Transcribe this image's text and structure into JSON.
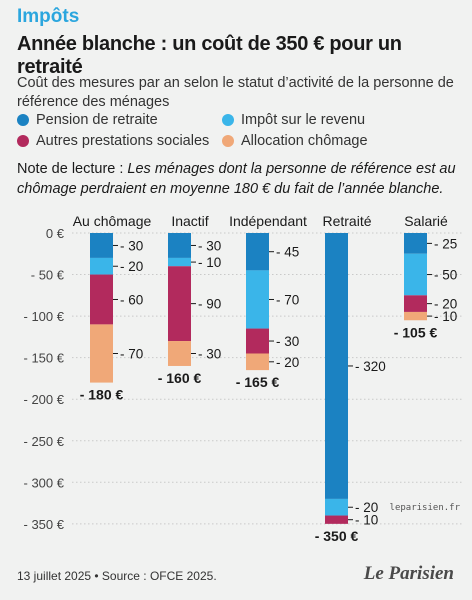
{
  "kicker": "Impôts",
  "title": "Année blanche : un coût de 350 € pour un retraité",
  "subtitle": "Coût des mesures par an selon le statut d’activité de la personne de référence des ménages",
  "legend": [
    {
      "label": "Pension de retraite",
      "color": "#1b82c2"
    },
    {
      "label": "Impôt sur le revenu",
      "color": "#3ab5e9"
    },
    {
      "label": "Autres prestations sociales",
      "color": "#b22a5d"
    },
    {
      "label": "Allocation chômage",
      "color": "#f0a878"
    }
  ],
  "note": {
    "prefix": "Note de lecture : ",
    "text": "Les ménages dont la personne de référence est au chômage perdraient en moyenne 180 € du fait de l’année blanche."
  },
  "footer": "13 juillet 2025 • Source : OFCE 2025.",
  "brand": "Le Parisien",
  "watermark": "leparisien.fr",
  "chart_data": {
    "type": "bar",
    "stacked": true,
    "categories": [
      "Au chômage",
      "Inactif",
      "Indépendant",
      "Retraité",
      "Salarié"
    ],
    "series": [
      {
        "name": "Pension de retraite",
        "color": "#1b82c2",
        "values": [
          -30,
          -30,
          -45,
          -320,
          -25
        ]
      },
      {
        "name": "Impôt sur le revenu",
        "color": "#3ab5e9",
        "values": [
          -20,
          -10,
          -70,
          -20,
          -50
        ]
      },
      {
        "name": "Autres prestations sociales",
        "color": "#b22a5d",
        "values": [
          -60,
          -90,
          -30,
          -10,
          -20
        ]
      },
      {
        "name": "Allocation chômage",
        "color": "#f0a878",
        "values": [
          -70,
          -30,
          -20,
          0,
          -10
        ]
      }
    ],
    "segment_labels": [
      [
        "- 30",
        "- 20",
        "- 60",
        "- 70"
      ],
      [
        "- 30",
        "- 10",
        "- 90",
        "- 30"
      ],
      [
        "- 45",
        "- 70",
        "- 30",
        "- 20"
      ],
      [
        "- 320",
        "- 20",
        "- 10",
        ""
      ],
      [
        "- 25",
        "- 50",
        "- 20",
        "- 10"
      ]
    ],
    "totals": [
      -180,
      -160,
      -165,
      -350,
      -105
    ],
    "total_labels": [
      "- 180 €",
      "- 160 €",
      "- 165 €",
      "- 350 €",
      "- 105 €"
    ],
    "y_ticks": [
      0,
      -50,
      -100,
      -150,
      -200,
      -250,
      -300,
      -350
    ],
    "y_tick_labels": [
      "0 €",
      "- 50 €",
      "- 100 €",
      "- 150 €",
      "- 200 €",
      "- 250 €",
      "- 300 €",
      "- 350 €"
    ],
    "ylim": [
      -360,
      0
    ],
    "grid": true
  }
}
